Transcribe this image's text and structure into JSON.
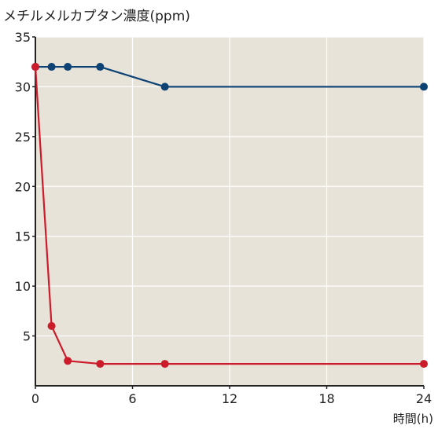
{
  "chart_data": {
    "type": "line",
    "ylabel": "メチルメルカプタン濃度(ppm)",
    "xlabel": "時間(h)",
    "xlim": [
      0,
      24
    ],
    "ylim": [
      0,
      35
    ],
    "x_ticks": [
      0,
      6,
      12,
      18,
      24
    ],
    "y_ticks": [
      5,
      10,
      15,
      20,
      25,
      30,
      35
    ],
    "grid": true,
    "plot_background": "#e8e3d8",
    "grid_color": "#ffffff",
    "series": [
      {
        "color": "#0d4275",
        "points": [
          [
            0,
            32
          ],
          [
            1,
            32
          ],
          [
            2,
            32
          ],
          [
            4,
            32
          ],
          [
            8,
            30
          ],
          [
            24,
            30
          ]
        ]
      },
      {
        "color": "#cc1b2b",
        "points": [
          [
            0,
            32
          ],
          [
            1,
            6
          ],
          [
            2,
            2.5
          ],
          [
            4,
            2.2
          ],
          [
            8,
            2.2
          ],
          [
            24,
            2.2
          ]
        ]
      }
    ]
  }
}
